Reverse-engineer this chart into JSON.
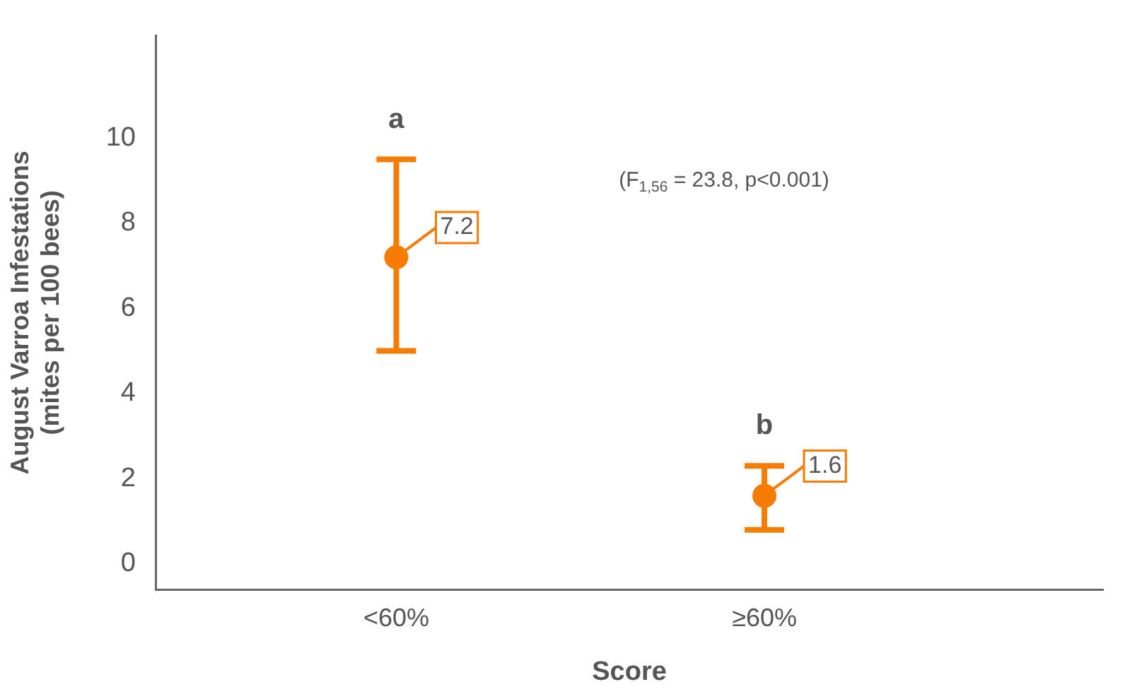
{
  "chart_data": {
    "type": "scatter",
    "categories": [
      "<60%",
      "≥60%"
    ],
    "series": [
      {
        "color": "#f57c00",
        "values": [
          7.2,
          1.6
        ],
        "errors": [
          [
            5.0,
            9.5
          ],
          [
            0.8,
            2.3
          ]
        ]
      }
    ],
    "marker": "circle",
    "data_labels": true,
    "xlabel": "Score",
    "ylabel": "August Varroa Infestations\n(mites per 100 bees)",
    "ylim": [
      -0.6,
      12.4
    ],
    "yticks": [
      0,
      2,
      4,
      6,
      8,
      10
    ],
    "grid": false,
    "legend": false,
    "annotations": [
      "a",
      "b",
      "(F$_{1,56}$ = 23.8, p<0.001)"
    ]
  }
}
